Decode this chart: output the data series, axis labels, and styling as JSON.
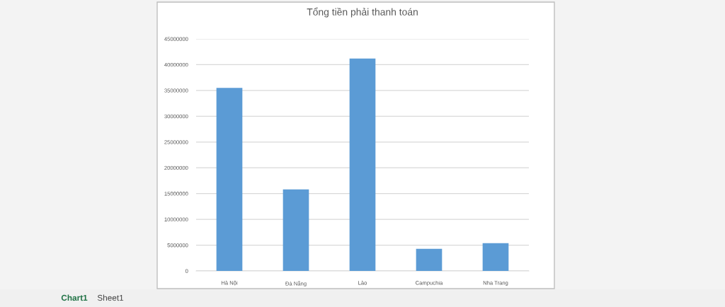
{
  "chart_data": {
    "type": "bar",
    "title": "Tổng tiền phải thanh toán",
    "categories": [
      "Hà Nội",
      "Đà Nẵng",
      "Lào",
      "Campuchia",
      "Nha Trang"
    ],
    "values": [
      35500000,
      15800000,
      41200000,
      4300000,
      5400000
    ],
    "color": "#5b9bd5",
    "ylim": [
      0,
      45000000
    ],
    "yticks": [
      0,
      5000000,
      10000000,
      15000000,
      20000000,
      25000000,
      30000000,
      35000000,
      40000000,
      45000000
    ],
    "grid": "y",
    "annotations": [
      "Chart1",
      "Sheet1"
    ]
  }
}
